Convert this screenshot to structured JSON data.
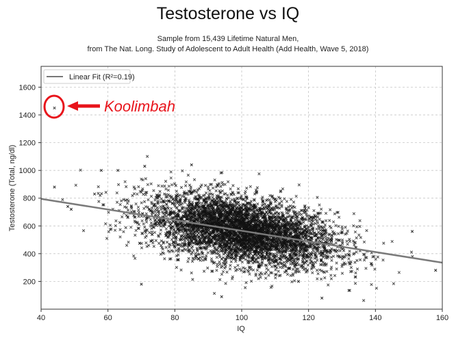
{
  "chart_data": {
    "type": "scatter",
    "title": "Testosterone vs IQ",
    "subtitle_lines": [
      "Sample from 15,439 Lifetime Natural Men,",
      "from The Nat. Long. Study of Adolescent to Adult Health (Add Health, Wave 5, 2018)"
    ],
    "xlabel": "IQ",
    "ylabel": "Testosterone (Total, ng/dl)",
    "xlim": [
      40,
      160
    ],
    "ylim": [
      0,
      1750
    ],
    "xticks": [
      40,
      60,
      80,
      100,
      120,
      140,
      160
    ],
    "yticks": [
      200,
      400,
      600,
      800,
      1000,
      1200,
      1400,
      1600
    ],
    "grid": true,
    "legend": {
      "placement": "top-left",
      "entries": [
        "Linear Fit (R²=0.19)"
      ]
    },
    "sample_size": 15439,
    "cloud": {
      "iq_mean": 100,
      "iq_sd": 15,
      "residual_sd": 120,
      "rendered_points": 5000
    },
    "fit_line": {
      "x": [
        40,
        160
      ],
      "y": [
        795,
        335
      ],
      "color": "#7a7a7a"
    },
    "highlight_point": {
      "x": 44,
      "y": 1450
    },
    "outliers": [
      {
        "x": 44,
        "y": 880
      },
      {
        "x": 48,
        "y": 740
      },
      {
        "x": 49,
        "y": 720
      },
      {
        "x": 56,
        "y": 830
      },
      {
        "x": 58,
        "y": 1000
      },
      {
        "x": 63,
        "y": 1000
      },
      {
        "x": 70,
        "y": 180
      },
      {
        "x": 71,
        "y": 1030
      },
      {
        "x": 85,
        "y": 1040
      },
      {
        "x": 94,
        "y": 90
      },
      {
        "x": 117,
        "y": 200
      },
      {
        "x": 124,
        "y": 80
      },
      {
        "x": 151,
        "y": 560
      },
      {
        "x": 158,
        "y": 280
      }
    ],
    "annotation": {
      "text": "Koolimbah",
      "color": "#e8141b"
    },
    "point_color": "#111111"
  }
}
